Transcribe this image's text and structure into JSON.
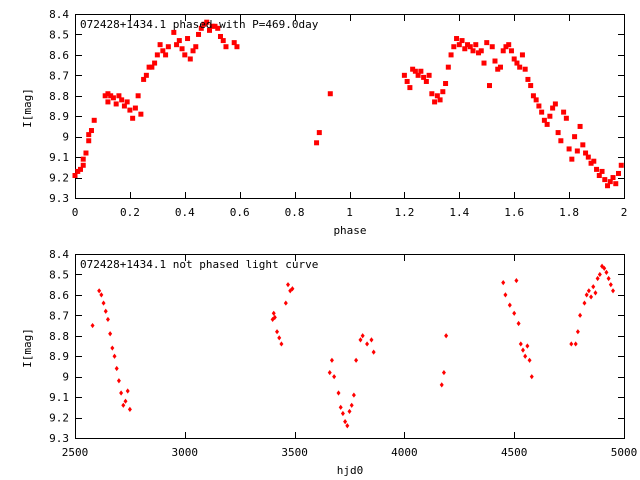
{
  "chart_data": [
    {
      "type": "scatter",
      "title": "072428+1434.1 phased with P=469.0day",
      "xlabel": "phase",
      "ylabel": "I[mag]",
      "xlim": [
        0,
        2
      ],
      "ylim": [
        8.4,
        9.3
      ],
      "y_inverted": true,
      "x_ticks": [
        "0",
        "0.2",
        "0.4",
        "0.6",
        "0.8",
        "1",
        "1.2",
        "1.4",
        "1.6",
        "1.8",
        "2"
      ],
      "y_ticks": [
        "8.4",
        "8.5",
        "8.6",
        "8.7",
        "8.8",
        "8.9",
        "9",
        "9.1",
        "9.2",
        "9.3"
      ],
      "marker_color": "#ff0000",
      "marker": "filled-square",
      "grid": false,
      "series": [
        {
          "points": [
            [
              0.0,
              9.19
            ],
            [
              0.01,
              9.17
            ],
            [
              0.02,
              9.16
            ],
            [
              0.03,
              9.14
            ],
            [
              0.03,
              9.11
            ],
            [
              0.04,
              9.08
            ],
            [
              0.05,
              9.02
            ],
            [
              0.05,
              8.99
            ],
            [
              0.06,
              8.97
            ],
            [
              0.07,
              8.92
            ],
            [
              0.11,
              8.8
            ],
            [
              0.12,
              8.79
            ],
            [
              0.12,
              8.83
            ],
            [
              0.13,
              8.8
            ],
            [
              0.14,
              8.81
            ],
            [
              0.15,
              8.84
            ],
            [
              0.16,
              8.8
            ],
            [
              0.17,
              8.82
            ],
            [
              0.18,
              8.85
            ],
            [
              0.19,
              8.83
            ],
            [
              0.2,
              8.87
            ],
            [
              0.21,
              8.91
            ],
            [
              0.22,
              8.86
            ],
            [
              0.23,
              8.8
            ],
            [
              0.24,
              8.89
            ],
            [
              0.25,
              8.72
            ],
            [
              0.26,
              8.7
            ],
            [
              0.27,
              8.66
            ],
            [
              0.28,
              8.66
            ],
            [
              0.29,
              8.64
            ],
            [
              0.3,
              8.6
            ],
            [
              0.31,
              8.55
            ],
            [
              0.32,
              8.58
            ],
            [
              0.33,
              8.6
            ],
            [
              0.34,
              8.56
            ],
            [
              0.36,
              8.49
            ],
            [
              0.37,
              8.55
            ],
            [
              0.38,
              8.53
            ],
            [
              0.39,
              8.57
            ],
            [
              0.4,
              8.6
            ],
            [
              0.41,
              8.52
            ],
            [
              0.42,
              8.62
            ],
            [
              0.43,
              8.58
            ],
            [
              0.44,
              8.56
            ],
            [
              0.45,
              8.5
            ],
            [
              0.46,
              8.47
            ],
            [
              0.47,
              8.45
            ],
            [
              0.48,
              8.44
            ],
            [
              0.49,
              8.48
            ],
            [
              0.5,
              8.46
            ],
            [
              0.51,
              8.46
            ],
            [
              0.52,
              8.47
            ],
            [
              0.53,
              8.51
            ],
            [
              0.54,
              8.53
            ],
            [
              0.55,
              8.56
            ],
            [
              0.58,
              8.54
            ],
            [
              0.59,
              8.56
            ],
            [
              0.88,
              9.03
            ],
            [
              0.89,
              8.98
            ],
            [
              0.93,
              8.79
            ],
            [
              1.2,
              8.7
            ],
            [
              1.21,
              8.73
            ],
            [
              1.22,
              8.76
            ],
            [
              1.23,
              8.67
            ],
            [
              1.24,
              8.68
            ],
            [
              1.25,
              8.7
            ],
            [
              1.26,
              8.68
            ],
            [
              1.27,
              8.71
            ],
            [
              1.28,
              8.73
            ],
            [
              1.29,
              8.7
            ],
            [
              1.3,
              8.79
            ],
            [
              1.31,
              8.83
            ],
            [
              1.32,
              8.8
            ],
            [
              1.33,
              8.82
            ],
            [
              1.34,
              8.78
            ],
            [
              1.35,
              8.74
            ],
            [
              1.36,
              8.66
            ],
            [
              1.37,
              8.6
            ],
            [
              1.38,
              8.56
            ],
            [
              1.39,
              8.52
            ],
            [
              1.4,
              8.55
            ],
            [
              1.41,
              8.53
            ],
            [
              1.42,
              8.57
            ],
            [
              1.43,
              8.55
            ],
            [
              1.44,
              8.56
            ],
            [
              1.45,
              8.58
            ],
            [
              1.46,
              8.55
            ],
            [
              1.47,
              8.59
            ],
            [
              1.48,
              8.58
            ],
            [
              1.49,
              8.64
            ],
            [
              1.5,
              8.54
            ],
            [
              1.51,
              8.75
            ],
            [
              1.52,
              8.56
            ],
            [
              1.53,
              8.63
            ],
            [
              1.54,
              8.67
            ],
            [
              1.55,
              8.66
            ],
            [
              1.56,
              8.58
            ],
            [
              1.57,
              8.56
            ],
            [
              1.58,
              8.55
            ],
            [
              1.59,
              8.58
            ],
            [
              1.6,
              8.62
            ],
            [
              1.61,
              8.64
            ],
            [
              1.62,
              8.66
            ],
            [
              1.63,
              8.6
            ],
            [
              1.64,
              8.67
            ],
            [
              1.65,
              8.72
            ],
            [
              1.66,
              8.75
            ],
            [
              1.67,
              8.8
            ],
            [
              1.68,
              8.82
            ],
            [
              1.69,
              8.85
            ],
            [
              1.7,
              8.88
            ],
            [
              1.71,
              8.92
            ],
            [
              1.72,
              8.94
            ],
            [
              1.73,
              8.9
            ],
            [
              1.74,
              8.86
            ],
            [
              1.75,
              8.84
            ],
            [
              1.76,
              8.98
            ],
            [
              1.77,
              9.02
            ],
            [
              1.78,
              8.88
            ],
            [
              1.79,
              8.91
            ],
            [
              1.8,
              9.06
            ],
            [
              1.81,
              9.11
            ],
            [
              1.82,
              9.0
            ],
            [
              1.83,
              9.07
            ],
            [
              1.84,
              8.95
            ],
            [
              1.85,
              9.04
            ],
            [
              1.86,
              9.08
            ],
            [
              1.87,
              9.1
            ],
            [
              1.88,
              9.13
            ],
            [
              1.89,
              9.12
            ],
            [
              1.9,
              9.16
            ],
            [
              1.91,
              9.19
            ],
            [
              1.92,
              9.17
            ],
            [
              1.93,
              9.21
            ],
            [
              1.94,
              9.24
            ],
            [
              1.95,
              9.22
            ],
            [
              1.96,
              9.2
            ],
            [
              1.97,
              9.23
            ],
            [
              1.98,
              9.18
            ],
            [
              1.99,
              9.14
            ]
          ]
        }
      ]
    },
    {
      "type": "scatter",
      "title": "072428+1434.1 not phased light curve",
      "xlabel": "hjd0",
      "ylabel": "I[mag]",
      "xlim": [
        2500,
        5000
      ],
      "ylim": [
        8.4,
        9.3
      ],
      "y_inverted": true,
      "x_ticks": [
        "2500",
        "3000",
        "3500",
        "4000",
        "4500",
        "5000"
      ],
      "y_ticks": [
        "8.4",
        "8.5",
        "8.6",
        "8.7",
        "8.8",
        "8.9",
        "9",
        "9.1",
        "9.2",
        "9.3"
      ],
      "marker_color": "#ff0000",
      "marker": "diamond",
      "grid": false,
      "series": [
        {
          "points": [
            [
              2580,
              8.75
            ],
            [
              2610,
              8.58
            ],
            [
              2620,
              8.6
            ],
            [
              2630,
              8.64
            ],
            [
              2640,
              8.68
            ],
            [
              2650,
              8.72
            ],
            [
              2660,
              8.79
            ],
            [
              2670,
              8.86
            ],
            [
              2680,
              8.9
            ],
            [
              2690,
              8.96
            ],
            [
              2700,
              9.02
            ],
            [
              2710,
              9.08
            ],
            [
              2720,
              9.14
            ],
            [
              2730,
              9.12
            ],
            [
              2740,
              9.07
            ],
            [
              2750,
              9.16
            ],
            [
              3400,
              8.72
            ],
            [
              3405,
              8.69
            ],
            [
              3410,
              8.71
            ],
            [
              3420,
              8.78
            ],
            [
              3430,
              8.81
            ],
            [
              3440,
              8.84
            ],
            [
              3460,
              8.64
            ],
            [
              3470,
              8.55
            ],
            [
              3480,
              8.58
            ],
            [
              3490,
              8.57
            ],
            [
              3660,
              8.98
            ],
            [
              3670,
              8.92
            ],
            [
              3680,
              9.0
            ],
            [
              3700,
              9.08
            ],
            [
              3710,
              9.15
            ],
            [
              3720,
              9.18
            ],
            [
              3730,
              9.22
            ],
            [
              3740,
              9.24
            ],
            [
              3750,
              9.17
            ],
            [
              3760,
              9.14
            ],
            [
              3770,
              9.09
            ],
            [
              3780,
              8.92
            ],
            [
              3800,
              8.82
            ],
            [
              3810,
              8.8
            ],
            [
              3830,
              8.84
            ],
            [
              3850,
              8.82
            ],
            [
              3860,
              8.88
            ],
            [
              4170,
              9.04
            ],
            [
              4180,
              8.98
            ],
            [
              4190,
              8.8
            ],
            [
              4450,
              8.54
            ],
            [
              4460,
              8.6
            ],
            [
              4480,
              8.65
            ],
            [
              4500,
              8.69
            ],
            [
              4510,
              8.53
            ],
            [
              4520,
              8.74
            ],
            [
              4530,
              8.84
            ],
            [
              4540,
              8.87
            ],
            [
              4550,
              8.9
            ],
            [
              4560,
              8.85
            ],
            [
              4570,
              8.92
            ],
            [
              4580,
              9.0
            ],
            [
              4760,
              8.84
            ],
            [
              4780,
              8.84
            ],
            [
              4790,
              8.78
            ],
            [
              4800,
              8.7
            ],
            [
              4820,
              8.64
            ],
            [
              4830,
              8.6
            ],
            [
              4840,
              8.58
            ],
            [
              4850,
              8.61
            ],
            [
              4860,
              8.56
            ],
            [
              4870,
              8.59
            ],
            [
              4880,
              8.52
            ],
            [
              4890,
              8.5
            ],
            [
              4900,
              8.46
            ],
            [
              4910,
              8.47
            ],
            [
              4920,
              8.49
            ],
            [
              4930,
              8.52
            ],
            [
              4940,
              8.55
            ],
            [
              4950,
              8.58
            ]
          ]
        }
      ]
    }
  ]
}
